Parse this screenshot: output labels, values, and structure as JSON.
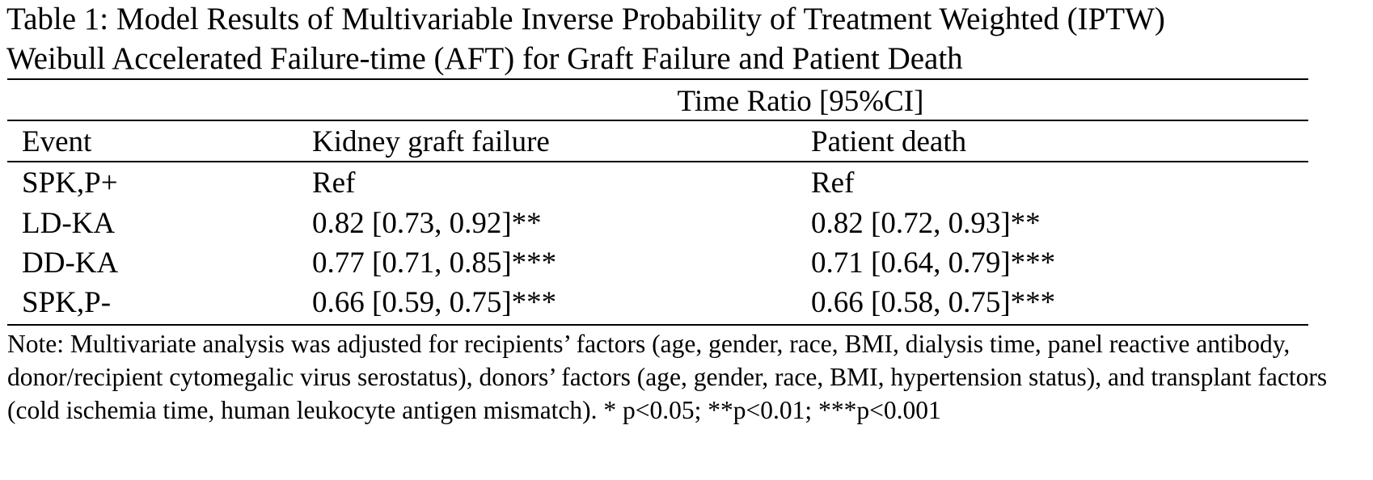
{
  "caption_lines": [
    "Table 1: Model Results of Multivariable Inverse Probability of Treatment Weighted (IPTW)",
    "Weibull Accelerated Failure-time (AFT) for Graft Failure and Patient Death"
  ],
  "table": {
    "spanning_header": "Time Ratio [95%CI]",
    "headers": [
      "Event",
      "Kidney graft failure",
      "Patient death"
    ],
    "rows": [
      [
        "SPK,P+",
        "Ref",
        "Ref"
      ],
      [
        "LD-KA",
        "0.82 [0.73, 0.92]**",
        "0.82 [0.72, 0.93]**"
      ],
      [
        "DD-KA",
        "0.77 [0.71, 0.85]***",
        "0.71 [0.64, 0.79]***"
      ],
      [
        "SPK,P-",
        "0.66 [0.59, 0.75]***",
        "0.66 [0.58, 0.75]***"
      ]
    ]
  },
  "note": "Note: Multivariate analysis was adjusted for recipients’ factors (age, gender, race, BMI, dialysis time, panel reactive antibody, donor/recipient cytomegalic virus serostatus), donors’ factors (age, gender, race, BMI, hypertension status), and transplant factors (cold ischemia time, human leukocyte antigen mismatch). * p<0.05; **p<0.01; ***p<0.001"
}
